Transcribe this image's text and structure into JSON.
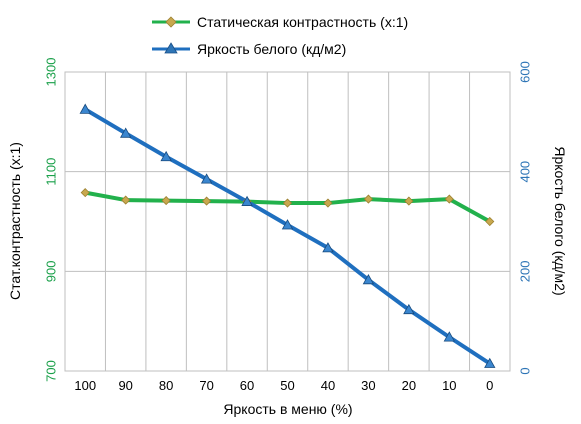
{
  "chart_data": {
    "type": "line",
    "categories": [
      "100",
      "90",
      "80",
      "70",
      "60",
      "50",
      "40",
      "30",
      "20",
      "10",
      "0"
    ],
    "xlabel": "Яркость в меню (%)",
    "y_left": {
      "label": "Стат.контрастность  (x:1)",
      "ylim": [
        700,
        1300
      ],
      "ticks": [
        "700",
        "900",
        "1100",
        "1300"
      ],
      "color": "#1aa04a"
    },
    "y_right": {
      "label": "Яркость белого (кд/м2)",
      "ylim": [
        0,
        600
      ],
      "ticks": [
        "0",
        "200",
        "400",
        "600"
      ],
      "color": "#2e75b6"
    },
    "grid": true,
    "legend_position": "top",
    "series": [
      {
        "name": "Статическая контрастность (x:1)",
        "axis": "left",
        "color": "#22b14c",
        "marker": "diamond",
        "marker_color": "#c8a84e",
        "values": [
          1058,
          1043,
          1042,
          1041,
          1040,
          1037,
          1037,
          1045,
          1041,
          1045,
          1000
        ]
      },
      {
        "name": "Яркость белого (кд/м2)",
        "axis": "right",
        "color": "#1f6fbf",
        "marker": "triangle",
        "marker_color": "#1f6fbf",
        "values": [
          525,
          477,
          430,
          385,
          340,
          293,
          247,
          183,
          123,
          68,
          15
        ]
      }
    ]
  }
}
